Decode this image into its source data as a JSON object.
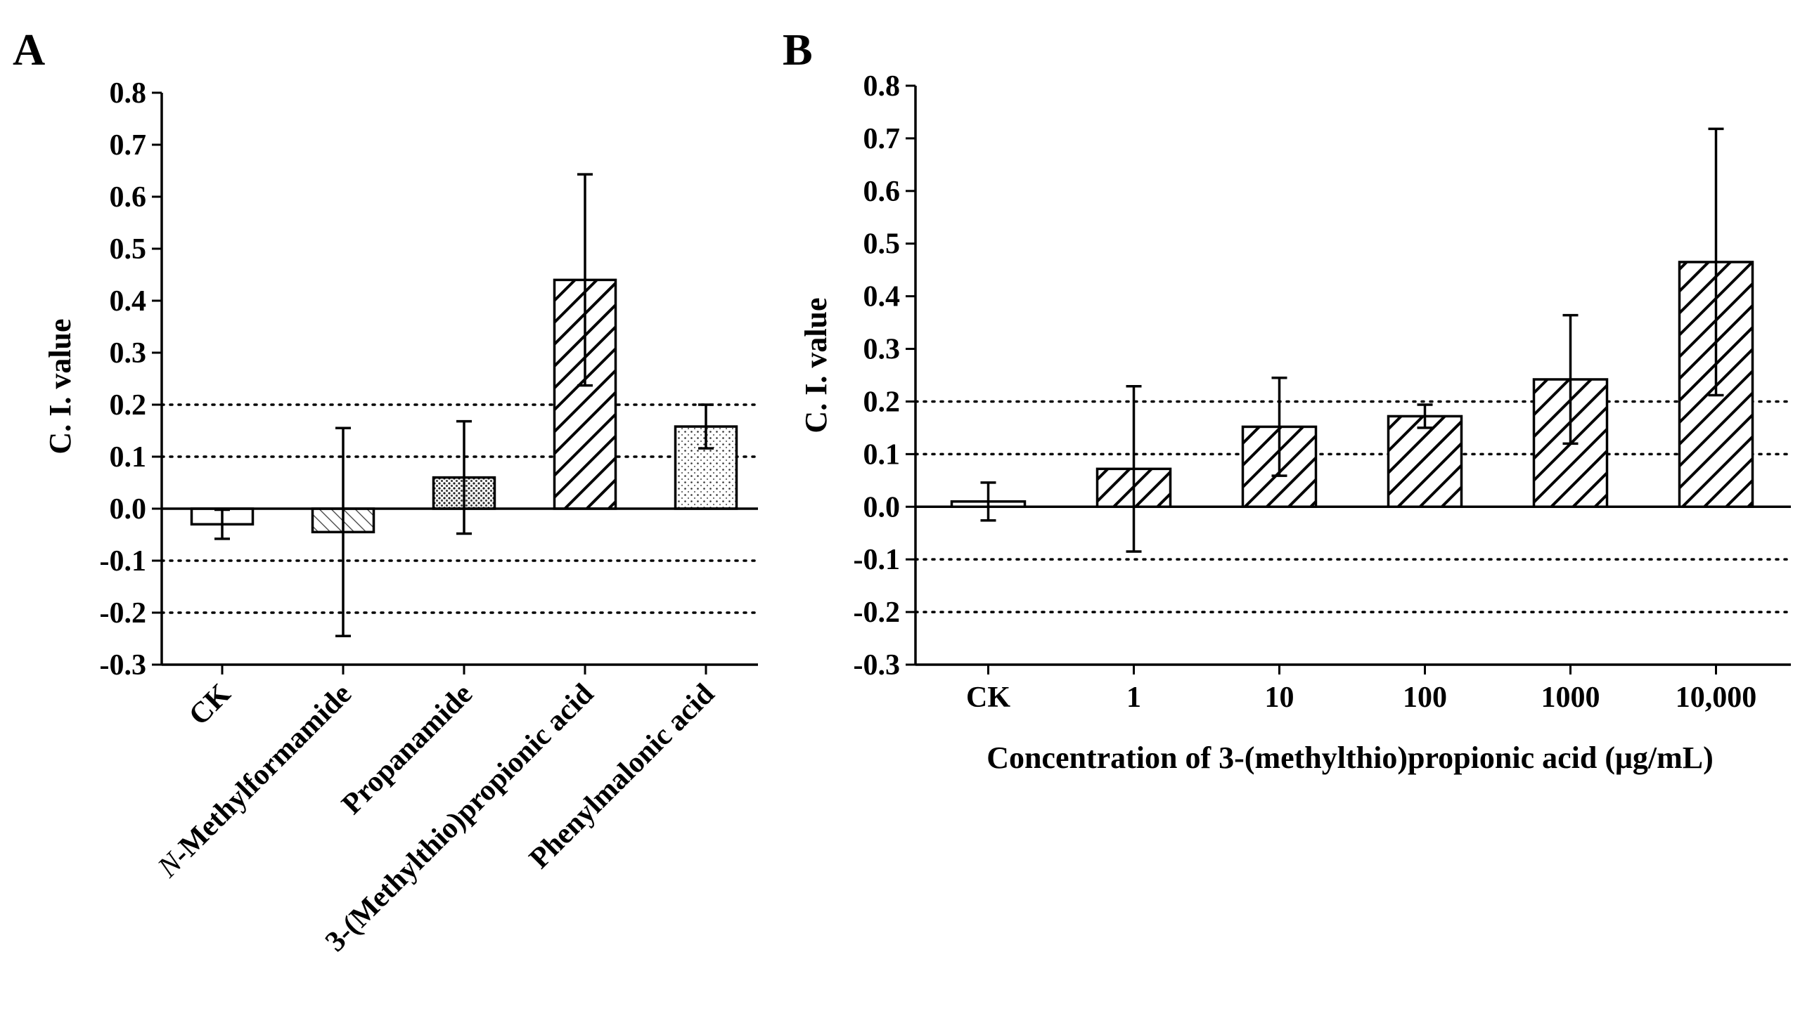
{
  "chart_data": [
    {
      "panel": "A",
      "type": "bar",
      "ylabel": "C. I. value",
      "xlabel": "",
      "ylim": [
        -0.3,
        0.8
      ],
      "yticks": [
        "0.8",
        "0.7",
        "0.6",
        "0.5",
        "0.4",
        "0.3",
        "0.2",
        "0.1",
        "0.0",
        "-0.1",
        "-0.2",
        "-0.3"
      ],
      "reference_lines": [
        0.2,
        0.1,
        -0.1,
        -0.2
      ],
      "categories": [
        "CK",
        "N-Methylformamide",
        "Propanamide",
        "3-(Methylthio)propionic acid",
        "Phenylmalonic acid"
      ],
      "category_prefix_italic": [
        "",
        "N",
        "",
        "",
        ""
      ],
      "category_rest": [
        "CK",
        "-Methylformamide",
        "Propanamide",
        "3-(Methylthio)propionic acid",
        "Phenylmalonic acid"
      ],
      "values": [
        -0.03,
        -0.045,
        0.06,
        0.44,
        0.158
      ],
      "errors": [
        0.028,
        0.2,
        0.108,
        0.203,
        0.042
      ],
      "patterns": [
        "none",
        "diag-sparse",
        "dots-dense",
        "diag-dense",
        "dots-sparse"
      ]
    },
    {
      "panel": "B",
      "type": "bar",
      "ylabel": "C. I. value",
      "xlabel": "Concentration of 3-(methylthio)propionic acid (μg/mL)",
      "ylim": [
        -0.3,
        0.8
      ],
      "yticks": [
        "0.8",
        "0.7",
        "0.6",
        "0.5",
        "0.4",
        "0.3",
        "0.2",
        "0.1",
        "0.0",
        "-0.1",
        "-0.2",
        "-0.3"
      ],
      "reference_lines": [
        0.2,
        0.1,
        -0.1,
        -0.2
      ],
      "categories": [
        "CK",
        "1",
        "10",
        "100",
        "1000",
        "10,000"
      ],
      "values": [
        0.01,
        0.072,
        0.152,
        0.172,
        0.242,
        0.465
      ],
      "errors": [
        0.036,
        0.157,
        0.093,
        0.022,
        0.122,
        0.253
      ],
      "patterns": [
        "none",
        "diag-dense",
        "diag-dense",
        "diag-dense",
        "diag-dense",
        "diag-dense"
      ]
    }
  ]
}
